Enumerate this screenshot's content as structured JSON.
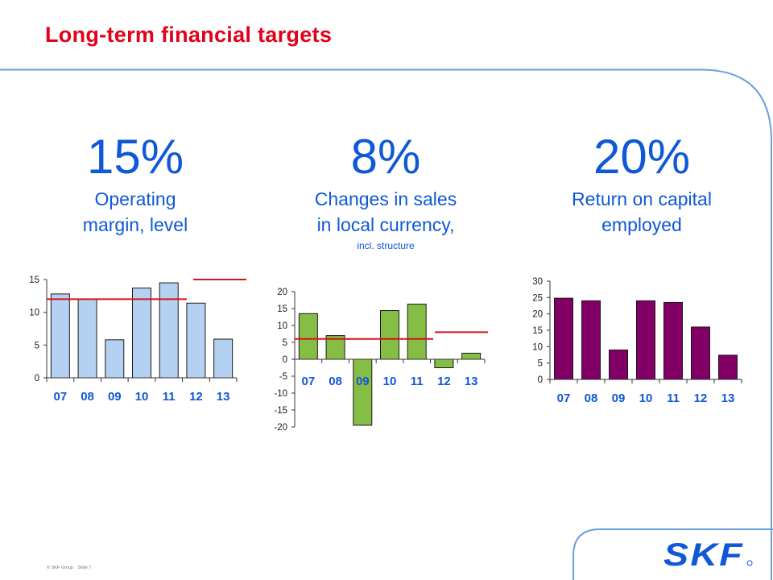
{
  "slide": {
    "title": "Long-term financial targets",
    "footer": {
      "copyright": "© SKF Group",
      "slide": "Slide 7"
    },
    "logo_text": "SKF"
  },
  "targets": [
    {
      "value": "15%",
      "line1": "Operating",
      "line2": "margin, level",
      "note": ""
    },
    {
      "value": "8%",
      "line1": "Changes in sales",
      "line2": "in local currency,",
      "note": "incl. structure"
    },
    {
      "value": "20%",
      "line1": "Return on capital",
      "line2": "employed",
      "note": ""
    }
  ],
  "colors": {
    "title": "#e2001a",
    "accent_blue": "#0f58d6",
    "target_line": "#d2151c",
    "bar1": "#b5d1f1",
    "bar2": "#86bd45",
    "bar3": "#820065",
    "bar_stroke": "#1a1a1a"
  },
  "chart_data": [
    {
      "type": "bar",
      "categories": [
        "07",
        "08",
        "09",
        "10",
        "11",
        "12",
        "13"
      ],
      "values": [
        12.8,
        12.0,
        5.8,
        13.7,
        14.5,
        11.4,
        5.9
      ],
      "ylim": [
        0,
        15
      ],
      "yticks": [
        0,
        5,
        10,
        15
      ],
      "target": 12,
      "target_after": 15,
      "xlabel": "",
      "ylabel": "",
      "grid": false
    },
    {
      "type": "bar",
      "categories": [
        "07",
        "08",
        "09",
        "10",
        "11",
        "12",
        "13"
      ],
      "values": [
        13.5,
        7.0,
        -19.5,
        14.4,
        16.3,
        -2.5,
        1.8
      ],
      "ylim": [
        -20,
        20
      ],
      "yticks": [
        -20,
        -15,
        -10,
        -5,
        0,
        5,
        10,
        15,
        20
      ],
      "target": 6,
      "target_after": 8,
      "xlabel": "",
      "ylabel": "",
      "grid": false
    },
    {
      "type": "bar",
      "categories": [
        "07",
        "08",
        "09",
        "10",
        "11",
        "12",
        "13"
      ],
      "values": [
        24.8,
        24.0,
        9.0,
        24.0,
        23.5,
        16.0,
        7.4
      ],
      "ylim": [
        0,
        30
      ],
      "yticks": [
        0,
        5,
        10,
        15,
        20,
        25,
        30
      ],
      "xlabel": "",
      "ylabel": "",
      "grid": false
    }
  ]
}
